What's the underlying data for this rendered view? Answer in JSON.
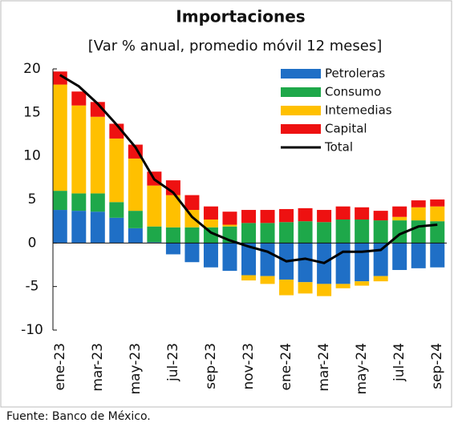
{
  "chart_data": {
    "type": "bar",
    "title": "Importaciones",
    "subtitle": "[Var % anual, promedio móvil 12 meses]",
    "source": "Fuente: Banco de México.",
    "categories": [
      "ene-23",
      null,
      "mar-23",
      null,
      "may-23",
      null,
      "jul-23",
      null,
      "sep-23",
      null,
      "nov-23",
      null,
      "ene-24",
      null,
      "mar-24",
      null,
      "may-24",
      null,
      "jul-24",
      null,
      "sep-24"
    ],
    "series": [
      {
        "name": "Petroleras",
        "color": "#1f6fc6",
        "values": [
          3.8,
          3.7,
          3.6,
          2.9,
          1.7,
          0.1,
          -1.3,
          -2.2,
          -2.8,
          -3.2,
          -3.7,
          -3.8,
          -4.2,
          -4.5,
          -4.7,
          -4.7,
          -4.4,
          -3.8,
          -3.1,
          -2.9,
          -2.8
        ]
      },
      {
        "name": "Consumo",
        "color": "#1ea84a",
        "values": [
          2.2,
          2.0,
          2.1,
          1.8,
          2.0,
          1.8,
          1.8,
          1.8,
          1.8,
          1.9,
          2.3,
          2.3,
          2.4,
          2.5,
          2.4,
          2.7,
          2.7,
          2.6,
          2.6,
          2.6,
          2.5
        ]
      },
      {
        "name": "Intemedias",
        "color": "#ffc000",
        "values": [
          12.2,
          10.1,
          8.8,
          7.3,
          6.0,
          4.7,
          3.7,
          2.0,
          0.9,
          0.2,
          -0.6,
          -0.9,
          -1.8,
          -1.3,
          -1.4,
          -0.5,
          -0.5,
          -0.6,
          0.4,
          1.5,
          1.7
        ]
      },
      {
        "name": "Capital",
        "color": "#ee1111",
        "values": [
          1.5,
          1.6,
          1.7,
          1.7,
          1.6,
          1.6,
          1.7,
          1.7,
          1.5,
          1.5,
          1.5,
          1.5,
          1.5,
          1.5,
          1.4,
          1.5,
          1.4,
          1.1,
          1.2,
          0.8,
          0.8
        ]
      },
      {
        "name": "Total",
        "type": "line",
        "color": "#000000",
        "values": [
          19.3,
          18.0,
          16.0,
          13.6,
          11.0,
          7.3,
          5.8,
          3.0,
          1.2,
          0.3,
          -0.4,
          -1.0,
          -2.1,
          -1.8,
          -2.3,
          -1.0,
          -1.0,
          -0.8,
          1.0,
          1.9,
          2.1
        ]
      }
    ],
    "ylim": [
      -10,
      20
    ],
    "yticks": [
      20,
      15,
      10,
      5,
      0,
      -5,
      -10
    ],
    "legend": "upper right"
  }
}
